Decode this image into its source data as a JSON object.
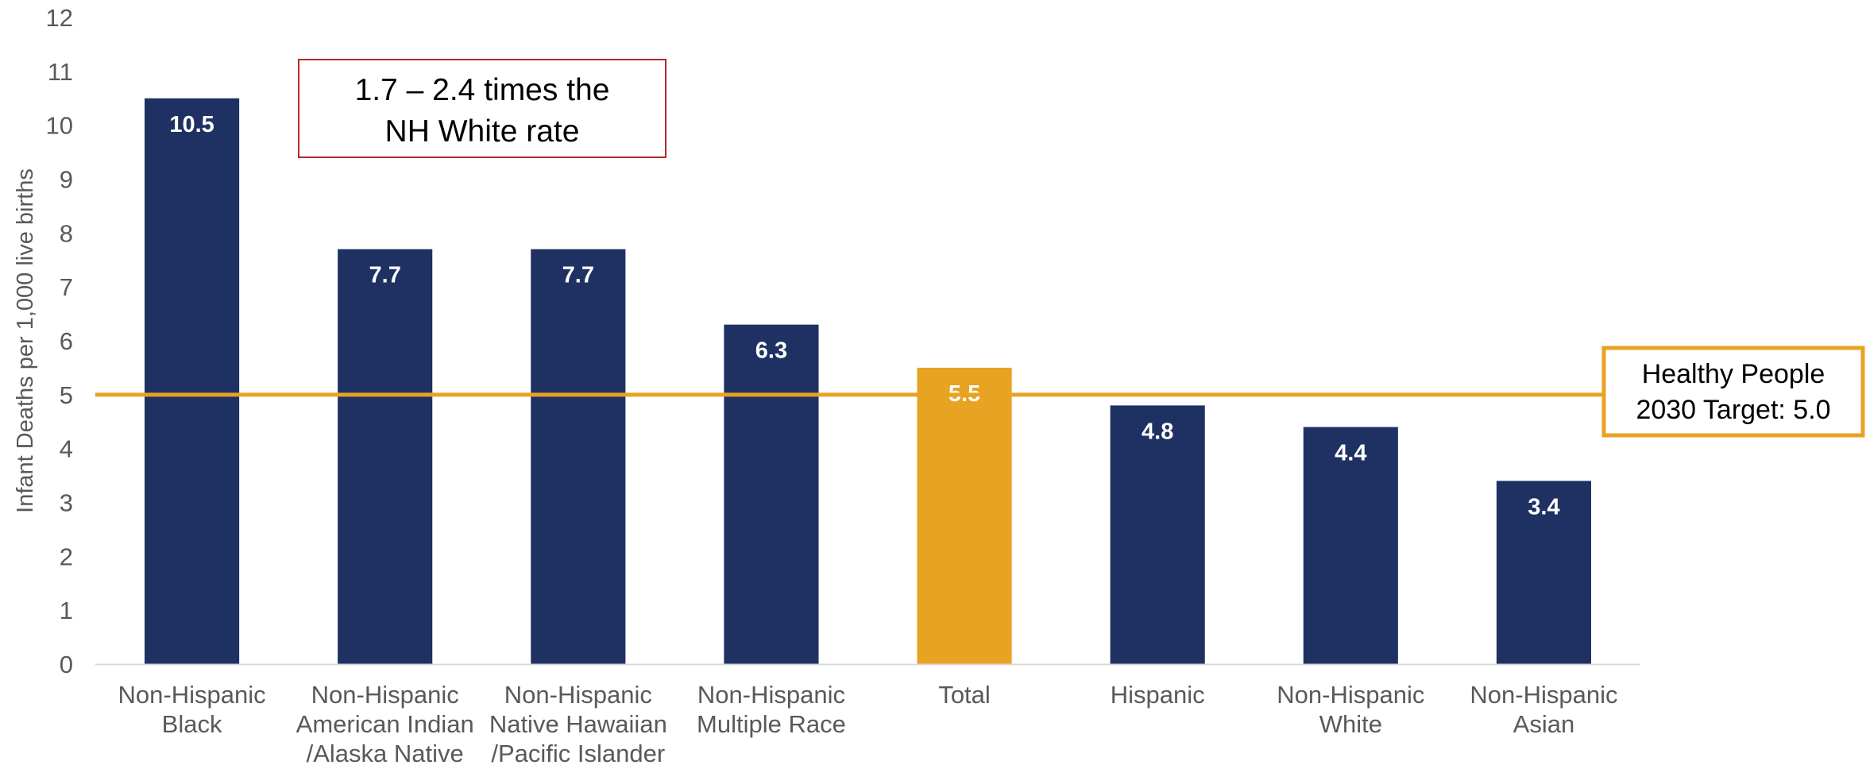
{
  "chart_data": {
    "type": "bar",
    "categories": [
      [
        "Non-Hispanic",
        "Black"
      ],
      [
        "Non-Hispanic",
        "American Indian",
        "/Alaska Native"
      ],
      [
        "Non-Hispanic",
        "Native Hawaiian",
        "/Pacific Islander"
      ],
      [
        "Non-Hispanic",
        "Multiple Race"
      ],
      [
        "Total"
      ],
      [
        "Hispanic"
      ],
      [
        "Non-Hispanic",
        "White"
      ],
      [
        "Non-Hispanic",
        "Asian"
      ]
    ],
    "values": [
      10.5,
      7.7,
      7.7,
      6.3,
      5.5,
      4.8,
      4.4,
      3.4
    ],
    "value_labels": [
      "10.5",
      "7.7",
      "7.7",
      "6.3",
      "5.5",
      "4.8",
      "4.4",
      "3.4"
    ],
    "highlight_index": 4,
    "ylabel": "Infant Deaths per 1,000 live births",
    "ylim": [
      0,
      12
    ],
    "yticks": [
      "0",
      "1",
      "2",
      "3",
      "4",
      "5",
      "6",
      "7",
      "8",
      "9",
      "10",
      "11",
      "12"
    ],
    "grid": false,
    "reference_line": {
      "value": 5.0,
      "label": [
        "Healthy People",
        "2030 Target: 5.0"
      ]
    },
    "annotation": {
      "text": [
        "1.7 – 2.4 times the",
        "NH White rate"
      ]
    },
    "colors": {
      "bar": "#1f3163",
      "highlight_bar": "#e8a323",
      "reference_line": "#e8a323",
      "annotation_border": "#b22a2a",
      "axis_text": "#595959"
    }
  }
}
